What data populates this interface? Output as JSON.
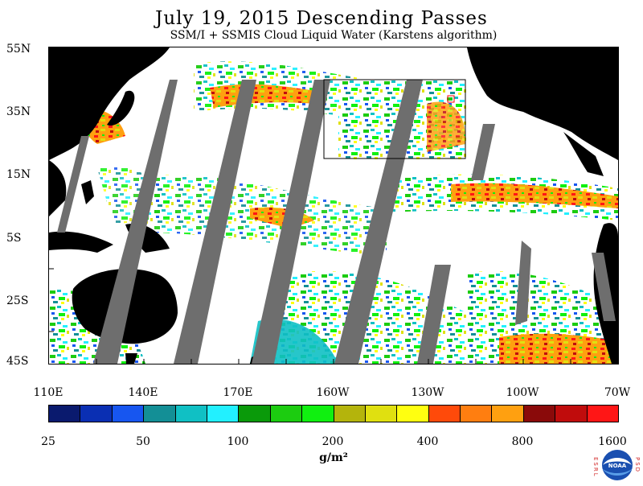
{
  "title": "July 19, 2015  Descending Passes",
  "subtitle": "SSM/I + SSMIS Cloud Liquid Water (Karstens algorithm)",
  "lat_labels": [
    "55N",
    "35N",
    "15N",
    "5S",
    "25S",
    "45S"
  ],
  "lon_labels": [
    "110E",
    "140E",
    "170E",
    "160W",
    "130W",
    "100W",
    "70W"
  ],
  "colorbar": {
    "colors": [
      "#0a1a6e",
      "#0a2fb3",
      "#1756f0",
      "#138f96",
      "#10c0c4",
      "#22f0ff",
      "#0a9a0a",
      "#1ccc10",
      "#10f010",
      "#b4b40c",
      "#e0e010",
      "#ffff10",
      "#ff4a0a",
      "#ff7e10",
      "#ffa010",
      "#8a0a0a",
      "#c00c0c",
      "#ff1616"
    ],
    "tick_labels": [
      "25",
      "50",
      "100",
      "200",
      "400",
      "800",
      "1600"
    ],
    "units": "g/m²"
  },
  "logo": {
    "left_letters": "ESRL",
    "right_letters": "PSD",
    "center_text": "NOAA"
  },
  "map": {
    "land_color": "#000000",
    "no_data_color": "#6e6e6e",
    "ocean_color": "#ffffff",
    "box_color": "#000000",
    "marker_color": "#ff0000"
  }
}
